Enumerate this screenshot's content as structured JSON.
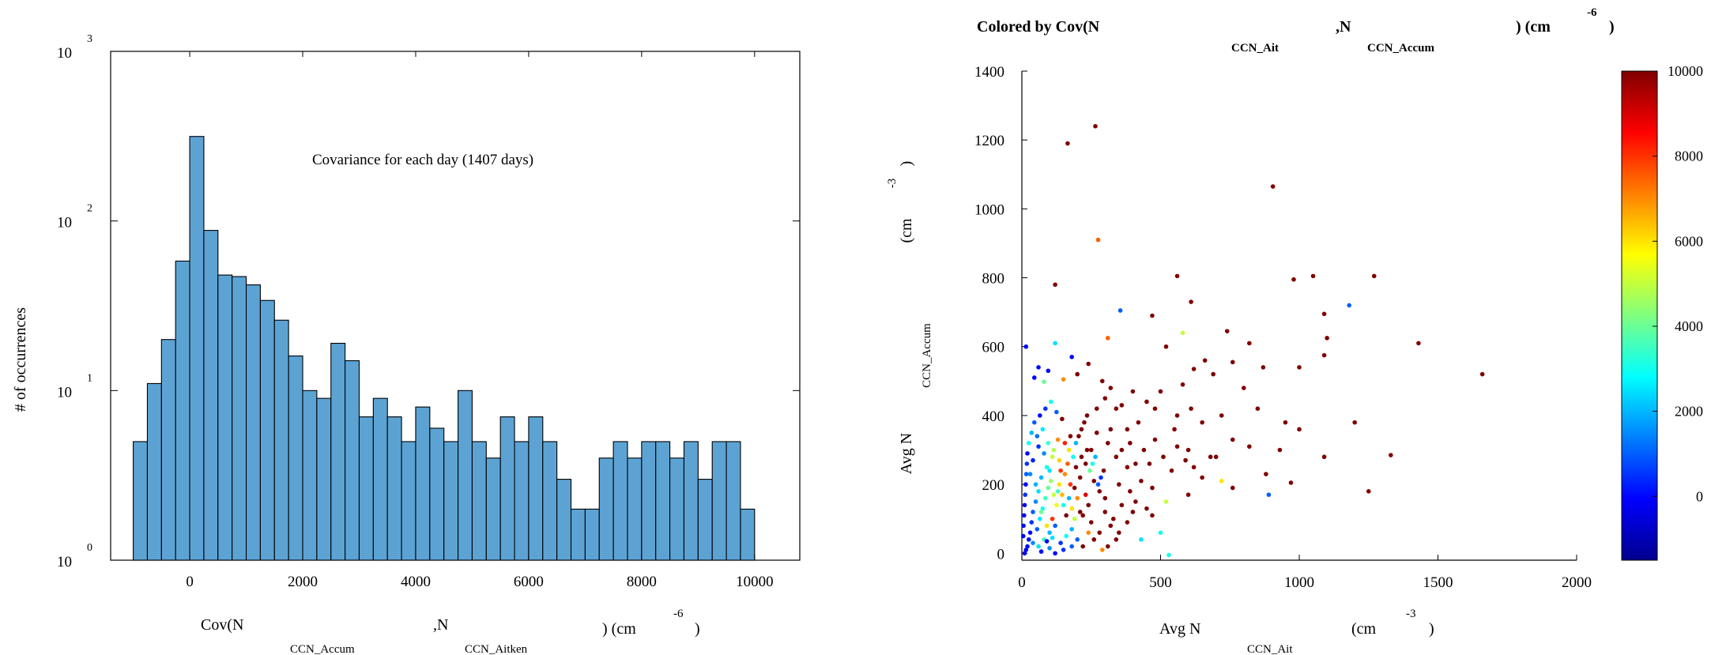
{
  "chart_data": [
    {
      "type": "bar",
      "y_scale": "log",
      "ylim": [
        1,
        1000
      ],
      "xlim": [
        -1400,
        10800
      ],
      "annotation": "Covariance for each day (1407 days)",
      "ylabel": "# of occurrences",
      "xlabel": {
        "parts": [
          "Cov(N",
          ",N",
          ") (cm",
          ")"
        ],
        "subscripts": [
          "CCN_Accum",
          "CCN_Aitken"
        ],
        "superscript": "-6"
      },
      "y_ticks": [
        {
          "value": 1,
          "base": "10",
          "exp": "0"
        },
        {
          "value": 10,
          "base": "10",
          "exp": "1"
        },
        {
          "value": 100,
          "base": "10",
          "exp": "2"
        },
        {
          "value": 1000,
          "base": "10",
          "exp": "3"
        }
      ],
      "x_ticks": [
        0,
        2000,
        4000,
        6000,
        8000,
        10000
      ],
      "bin_start": -1000,
      "bin_width": 250,
      "counts": [
        5,
        11,
        20,
        58,
        315,
        88,
        48,
        47,
        42,
        34,
        26,
        16,
        10,
        9,
        19,
        15,
        7,
        9,
        7,
        5,
        8,
        6,
        5,
        10,
        5,
        4,
        7,
        5,
        7,
        5,
        3,
        2,
        2,
        4,
        5,
        4,
        5,
        5,
        4,
        5,
        3,
        5,
        5,
        2
      ],
      "bar_color": "#5ca3d4"
    },
    {
      "type": "scatter",
      "title": {
        "parts": [
          "Colored by Cov(N",
          ",N",
          ") (cm",
          ")"
        ],
        "subscripts": [
          "CCN_Ait",
          "CCN_Accum"
        ],
        "superscript": "-6"
      },
      "xlabel": {
        "parts": [
          "Avg N",
          "(cm",
          ")"
        ],
        "subscript": "CCN_Ait",
        "superscript": "-3"
      },
      "ylabel": {
        "parts": [
          "Avg N",
          "(cm",
          ")"
        ],
        "subscript": "CCN_Accum",
        "superscript": "-3"
      },
      "xlim": [
        0,
        2000
      ],
      "ylim": [
        -20,
        1400
      ],
      "x_ticks": [
        0,
        500,
        1000,
        1500,
        2000
      ],
      "y_ticks": [
        0,
        200,
        400,
        600,
        800,
        1000,
        1200,
        1400
      ],
      "colorbar": {
        "min": -1500,
        "max": 10000,
        "ticks": [
          0,
          2000,
          4000,
          6000,
          8000,
          10000
        ],
        "colormap": "jet"
      },
      "points": [
        [
          265,
          1240,
          10000
        ],
        [
          165,
          1190,
          10000
        ],
        [
          905,
          1065,
          10000
        ],
        [
          275,
          910,
          7500
        ],
        [
          120,
          780,
          10000
        ],
        [
          560,
          805,
          10000
        ],
        [
          1050,
          805,
          10000
        ],
        [
          1270,
          805,
          10000
        ],
        [
          980,
          795,
          10000
        ],
        [
          355,
          705,
          1000
        ],
        [
          1180,
          720,
          1000
        ],
        [
          1090,
          695,
          10000
        ],
        [
          610,
          730,
          10000
        ],
        [
          470,
          690,
          10000
        ],
        [
          740,
          645,
          10000
        ],
        [
          580,
          640,
          5000
        ],
        [
          1100,
          625,
          10000
        ],
        [
          1430,
          610,
          10000
        ],
        [
          1090,
          575,
          10000
        ],
        [
          820,
          610,
          10000
        ],
        [
          310,
          625,
          7500
        ],
        [
          520,
          600,
          10000
        ],
        [
          1660,
          520,
          10000
        ],
        [
          870,
          540,
          10000
        ],
        [
          1000,
          540,
          10000
        ],
        [
          760,
          555,
          10000
        ],
        [
          660,
          560,
          10000
        ],
        [
          620,
          535,
          10000
        ],
        [
          690,
          520,
          10000
        ],
        [
          120,
          610,
          2500
        ],
        [
          15,
          600,
          0
        ],
        [
          180,
          570,
          0
        ],
        [
          240,
          550,
          10000
        ],
        [
          60,
          540,
          0
        ],
        [
          95,
          530,
          0
        ],
        [
          200,
          520,
          10000
        ],
        [
          45,
          510,
          0
        ],
        [
          150,
          505,
          7000
        ],
        [
          80,
          498,
          4000
        ],
        [
          580,
          490,
          10000
        ],
        [
          800,
          480,
          10000
        ],
        [
          1200,
          380,
          10000
        ],
        [
          950,
          380,
          10000
        ],
        [
          1000,
          360,
          10000
        ],
        [
          500,
          470,
          10000
        ],
        [
          850,
          420,
          10000
        ],
        [
          720,
          400,
          10000
        ],
        [
          650,
          380,
          10000
        ],
        [
          550,
          360,
          10000
        ],
        [
          420,
          380,
          10000
        ],
        [
          380,
          360,
          10000
        ],
        [
          340,
          420,
          10000
        ],
        [
          300,
          450,
          10000
        ],
        [
          450,
          440,
          10000
        ],
        [
          400,
          470,
          10000
        ],
        [
          600,
          300,
          10000
        ],
        [
          700,
          280,
          10000
        ],
        [
          760,
          330,
          10000
        ],
        [
          820,
          310,
          10000
        ],
        [
          880,
          230,
          10000
        ],
        [
          930,
          300,
          10000
        ],
        [
          1090,
          280,
          10000
        ],
        [
          1330,
          285,
          10000
        ],
        [
          970,
          205,
          10000
        ],
        [
          1250,
          180,
          10000
        ],
        [
          890,
          170,
          1000
        ],
        [
          760,
          190,
          10000
        ],
        [
          720,
          210,
          6000
        ],
        [
          600,
          170,
          10000
        ],
        [
          520,
          150,
          5000
        ],
        [
          470,
          190,
          10000
        ],
        [
          430,
          210,
          10000
        ],
        [
          380,
          250,
          10000
        ],
        [
          340,
          280,
          10000
        ],
        [
          310,
          320,
          10000
        ],
        [
          270,
          350,
          10000
        ],
        [
          250,
          300,
          10000
        ],
        [
          230,
          260,
          10000
        ],
        [
          210,
          220,
          10000
        ],
        [
          190,
          190,
          10000
        ],
        [
          260,
          210,
          10000
        ],
        [
          280,
          180,
          10000
        ],
        [
          300,
          160,
          10000
        ],
        [
          240,
          140,
          10000
        ],
        [
          220,
          110,
          10000
        ],
        [
          250,
          90,
          10000
        ],
        [
          300,
          120,
          10000
        ],
        [
          330,
          100,
          10000
        ],
        [
          360,
          140,
          10000
        ],
        [
          400,
          120,
          10000
        ],
        [
          500,
          60,
          3000
        ],
        [
          430,
          40,
          2500
        ],
        [
          530,
          -5,
          3000
        ],
        [
          320,
          80,
          10000
        ],
        [
          280,
          60,
          10000
        ],
        [
          260,
          40,
          10000
        ],
        [
          350,
          60,
          10000
        ],
        [
          200,
          160,
          7000
        ],
        [
          180,
          130,
          6000
        ],
        [
          160,
          110,
          10000
        ],
        [
          140,
          240,
          8000
        ],
        [
          170,
          300,
          6000
        ],
        [
          130,
          330,
          7000
        ],
        [
          110,
          280,
          5000
        ],
        [
          90,
          250,
          3000
        ],
        [
          70,
          220,
          2000
        ],
        [
          60,
          180,
          2500
        ],
        [
          50,
          150,
          1500
        ],
        [
          40,
          120,
          1000
        ],
        [
          35,
          90,
          500
        ],
        [
          30,
          60,
          0
        ],
        [
          25,
          40,
          0
        ],
        [
          20,
          20,
          0
        ],
        [
          15,
          10,
          0
        ],
        [
          10,
          0,
          0
        ],
        [
          55,
          70,
          1000
        ],
        [
          65,
          100,
          2500
        ],
        [
          75,
          130,
          3000
        ],
        [
          85,
          160,
          3500
        ],
        [
          95,
          190,
          4000
        ],
        [
          105,
          210,
          4500
        ],
        [
          115,
          170,
          5000
        ],
        [
          125,
          140,
          5500
        ],
        [
          135,
          200,
          6000
        ],
        [
          145,
          170,
          6500
        ],
        [
          155,
          230,
          7000
        ],
        [
          165,
          260,
          7500
        ],
        [
          175,
          200,
          8000
        ],
        [
          185,
          280,
          3000
        ],
        [
          195,
          320,
          2000
        ],
        [
          205,
          340,
          10000
        ],
        [
          215,
          360,
          10000
        ],
        [
          225,
          380,
          10000
        ],
        [
          235,
          400,
          10000
        ],
        [
          245,
          240,
          4000
        ],
        [
          255,
          260,
          3000
        ],
        [
          265,
          280,
          2000
        ],
        [
          275,
          200,
          1000
        ],
        [
          285,
          220,
          500
        ],
        [
          295,
          240,
          10000
        ],
        [
          145,
          390,
          10000
        ],
        [
          125,
          410,
          1000
        ],
        [
          105,
          440,
          3000
        ],
        [
          85,
          420,
          500
        ],
        [
          65,
          400,
          0
        ],
        [
          45,
          380,
          1000
        ],
        [
          35,
          350,
          2000
        ],
        [
          25,
          320,
          3000
        ],
        [
          20,
          290,
          0
        ],
        [
          18,
          260,
          500
        ],
        [
          16,
          230,
          1000
        ],
        [
          14,
          200,
          0
        ],
        [
          12,
          170,
          500
        ],
        [
          10,
          140,
          0
        ],
        [
          8,
          110,
          0
        ],
        [
          6,
          80,
          0
        ],
        [
          5,
          50,
          0
        ],
        [
          40,
          30,
          1500
        ],
        [
          60,
          20,
          2500
        ],
        [
          80,
          40,
          3500
        ],
        [
          100,
          60,
          2000
        ],
        [
          120,
          80,
          1000
        ],
        [
          140,
          30,
          500
        ],
        [
          160,
          50,
          3000
        ],
        [
          180,
          70,
          2000
        ],
        [
          200,
          40,
          1000
        ],
        [
          220,
          20,
          10000
        ],
        [
          240,
          60,
          7000
        ],
        [
          110,
          100,
          8000
        ],
        [
          90,
          80,
          6000
        ],
        [
          70,
          120,
          4000
        ],
        [
          50,
          200,
          2000
        ],
        [
          30,
          230,
          1500
        ],
        [
          150,
          140,
          3000
        ],
        [
          170,
          160,
          2000
        ],
        [
          190,
          100,
          5000
        ],
        [
          210,
          120,
          10000
        ],
        [
          230,
          170,
          9000
        ],
        [
          130,
          180,
          3500
        ],
        [
          100,
          240,
          2500
        ],
        [
          80,
          290,
          1500
        ],
        [
          60,
          310,
          500
        ],
        [
          40,
          270,
          300
        ],
        [
          55,
          340,
          1200
        ],
        [
          75,
          360,
          2600
        ],
        [
          95,
          320,
          3400
        ],
        [
          115,
          300,
          4800
        ],
        [
          135,
          270,
          6200
        ],
        [
          155,
          320,
          8200
        ],
        [
          175,
          340,
          10000
        ],
        [
          195,
          250,
          10000
        ],
        [
          215,
          280,
          10000
        ],
        [
          235,
          300,
          10000
        ],
        [
          320,
          360,
          10000
        ],
        [
          360,
          300,
          10000
        ],
        [
          390,
          320,
          10000
        ],
        [
          410,
          260,
          10000
        ],
        [
          440,
          300,
          10000
        ],
        [
          460,
          260,
          10000
        ],
        [
          480,
          330,
          10000
        ],
        [
          510,
          280,
          10000
        ],
        [
          540,
          240,
          10000
        ],
        [
          560,
          310,
          10000
        ],
        [
          590,
          270,
          10000
        ],
        [
          620,
          250,
          10000
        ],
        [
          650,
          220,
          10000
        ],
        [
          680,
          280,
          10000
        ],
        [
          560,
          400,
          10000
        ],
        [
          610,
          420,
          10000
        ],
        [
          480,
          420,
          10000
        ],
        [
          360,
          430,
          10000
        ],
        [
          320,
          480,
          10000
        ],
        [
          290,
          500,
          10000
        ],
        [
          270,
          420,
          10000
        ],
        [
          350,
          200,
          10000
        ],
        [
          390,
          180,
          10000
        ],
        [
          410,
          150,
          10000
        ],
        [
          450,
          130,
          10000
        ],
        [
          470,
          110,
          10000
        ],
        [
          380,
          90,
          10000
        ],
        [
          340,
          40,
          10000
        ],
        [
          310,
          20,
          10000
        ],
        [
          290,
          10,
          7000
        ],
        [
          180,
          20,
          1000
        ],
        [
          150,
          10,
          500
        ],
        [
          120,
          0,
          0
        ],
        [
          100,
          15,
          1500
        ],
        [
          70,
          5,
          0
        ],
        [
          90,
          35,
          0
        ],
        [
          110,
          45,
          2500
        ]
      ]
    }
  ]
}
